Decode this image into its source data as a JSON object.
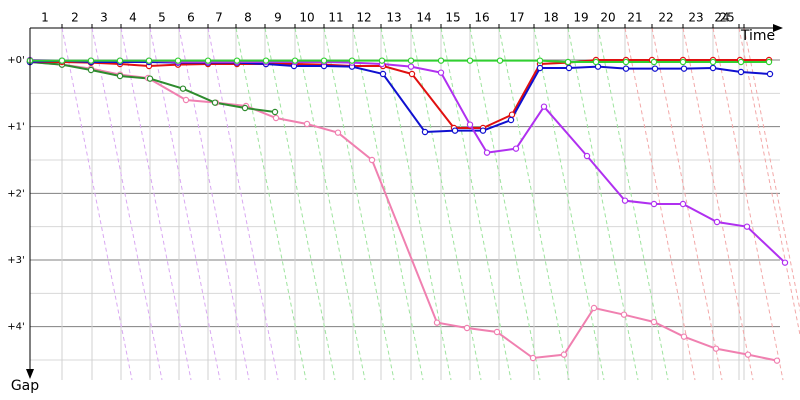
{
  "chart_data": {
    "type": "line",
    "x_label": "Time",
    "y_label": "Gap",
    "xlim": [
      0,
      750
    ],
    "xticks": [
      {
        "value": 15,
        "label": "1"
      },
      {
        "value": 45,
        "label": "2"
      },
      {
        "value": 74,
        "label": "3"
      },
      {
        "value": 103,
        "label": "4"
      },
      {
        "value": 132,
        "label": "5"
      },
      {
        "value": 161,
        "label": "6"
      },
      {
        "value": 189,
        "label": "7"
      },
      {
        "value": 218,
        "label": "8"
      },
      {
        "value": 248,
        "label": "9"
      },
      {
        "value": 277,
        "label": "10"
      },
      {
        "value": 306,
        "label": "11"
      },
      {
        "value": 334,
        "label": "12"
      },
      {
        "value": 364,
        "label": "13"
      },
      {
        "value": 394,
        "label": "14"
      },
      {
        "value": 423,
        "label": "15"
      },
      {
        "value": 452,
        "label": "16"
      },
      {
        "value": 487,
        "label": "17"
      },
      {
        "value": 521,
        "label": "18"
      },
      {
        "value": 551,
        "label": "19"
      },
      {
        "value": 578,
        "label": "20"
      },
      {
        "value": 605,
        "label": "21"
      },
      {
        "value": 636,
        "label": "22"
      },
      {
        "value": 666,
        "label": "23"
      },
      {
        "value": 692,
        "label": "24"
      },
      {
        "value": 697,
        "label": "25"
      }
    ],
    "ylim": [
      -0.48,
      4.8
    ],
    "yticks": [
      {
        "value": 0,
        "label": "+0'"
      },
      {
        "value": 1,
        "label": "+1'"
      },
      {
        "value": 2,
        "label": "+2'"
      },
      {
        "value": 3,
        "label": "+3'"
      },
      {
        "value": 4,
        "label": "+4'"
      }
    ],
    "y_minor_ticks": [
      0.5,
      1.5,
      2.5,
      3.5,
      4.5
    ],
    "grid": true,
    "series": [
      {
        "color": "#f080b0",
        "x": [
          0,
          32,
          61,
          90,
          118,
          156,
          186,
          216,
          246,
          277,
          308,
          342,
          407,
          437,
          467,
          503,
          534,
          564,
          594,
          624,
          654,
          686,
          718,
          747
        ],
        "values": [
          0.03,
          0.07,
          0.13,
          0.22,
          0.27,
          0.6,
          0.64,
          0.69,
          0.87,
          0.96,
          1.09,
          1.5,
          3.94,
          4.02,
          4.08,
          4.47,
          4.42,
          3.72,
          3.82,
          3.93,
          4.15,
          4.33,
          4.42,
          4.51
        ]
      },
      {
        "color": "#2e8b2e",
        "x": [
          0,
          32,
          61,
          90,
          120,
          153,
          185,
          215,
          245
        ],
        "values": [
          0.03,
          0.07,
          0.15,
          0.24,
          0.28,
          0.43,
          0.64,
          0.72,
          0.78
        ]
      },
      {
        "color": "#e01010",
        "x": [
          0,
          32,
          61,
          90,
          119,
          148,
          178,
          207,
          236,
          265,
          294,
          322,
          353,
          382,
          424,
          453,
          482,
          510,
          538,
          566,
          596,
          622,
          653,
          683,
          710,
          739
        ],
        "values": [
          0.03,
          0.03,
          0.04,
          0.06,
          0.09,
          0.07,
          0.06,
          0.06,
          0.06,
          0.06,
          0.07,
          0.09,
          0.09,
          0.21,
          1.02,
          1.02,
          0.82,
          0.06,
          0.04,
          0,
          0,
          0,
          0,
          0,
          0,
          0
        ]
      },
      {
        "color": "#1010d0",
        "x": [
          0,
          32,
          61,
          90,
          119,
          148,
          178,
          207,
          236,
          264,
          294,
          322,
          353,
          395,
          425,
          453,
          481,
          510,
          539,
          568,
          596,
          625,
          654,
          683,
          711,
          740
        ],
        "values": [
          0.03,
          0.01,
          0.03,
          0.03,
          0.03,
          0.04,
          0.04,
          0.04,
          0.06,
          0.09,
          0.09,
          0.1,
          0.21,
          1.08,
          1.06,
          1.06,
          0.9,
          0.12,
          0.12,
          0.1,
          0.13,
          0.13,
          0.13,
          0.12,
          0.18,
          0.21
        ]
      },
      {
        "color": "#b030f0",
        "x": [
          0,
          32,
          61,
          90,
          119,
          148,
          178,
          207,
          236,
          265,
          294,
          322,
          352,
          381,
          411,
          440,
          457,
          486,
          514,
          557,
          595,
          624,
          653,
          687,
          717,
          755
        ],
        "values": [
          0,
          0.01,
          0.01,
          0.01,
          0.01,
          0.03,
          0.03,
          0.03,
          0.03,
          0.03,
          0.03,
          0.04,
          0.06,
          0.1,
          0.19,
          0.97,
          1.39,
          1.33,
          0.7,
          1.44,
          2.11,
          2.16,
          2.16,
          2.43,
          2.5,
          3.04
        ]
      },
      {
        "color": "#30d030",
        "x": [
          0,
          32,
          61,
          90,
          119,
          148,
          178,
          207,
          236,
          265,
          294,
          322,
          352,
          381,
          411,
          440,
          470,
          510,
          538,
          566,
          596,
          624,
          653,
          683,
          711,
          739
        ],
        "values": [
          0.01,
          0.01,
          0.01,
          0.01,
          0.01,
          0.01,
          0.01,
          0.01,
          0.01,
          0.01,
          0.01,
          0.01,
          0.01,
          0.01,
          0.01,
          0.01,
          0.01,
          0.01,
          0.03,
          0.03,
          0.03,
          0.03,
          0.03,
          0.03,
          0.03,
          0.03
        ]
      }
    ]
  }
}
